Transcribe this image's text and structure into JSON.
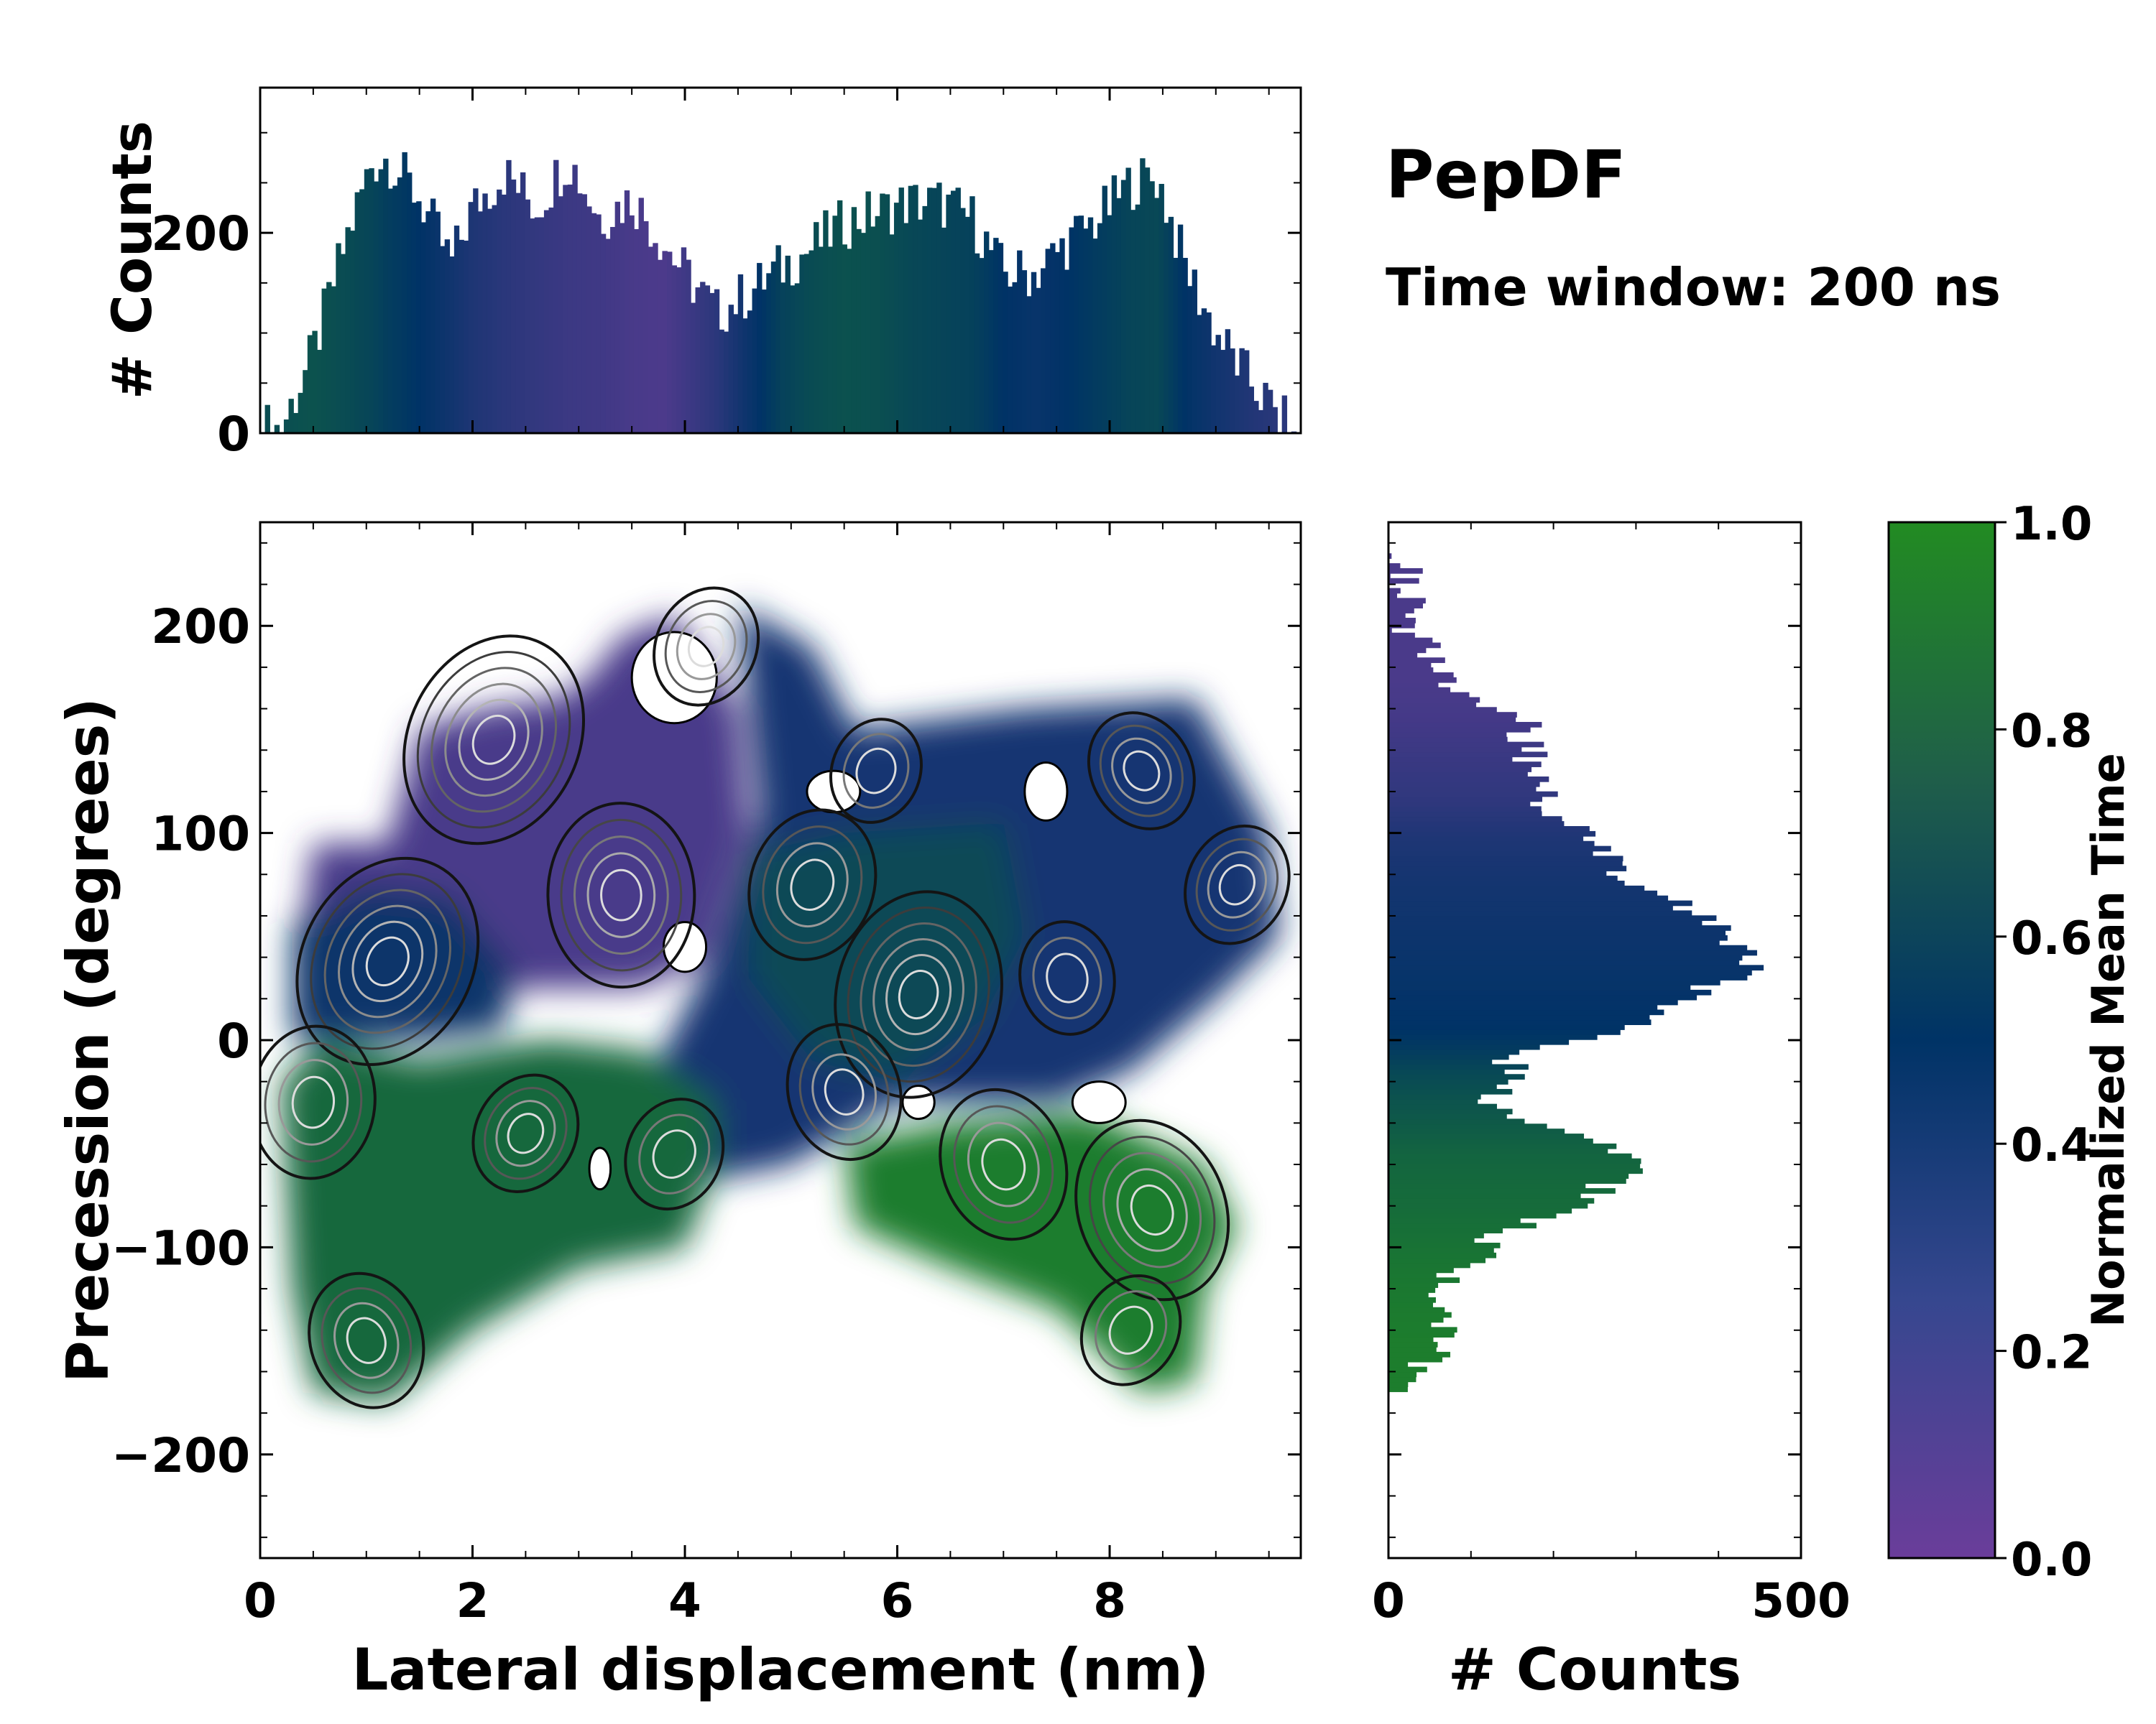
{
  "title": "PepDF",
  "subtitle": "Time window: 200 ns",
  "colors": {
    "purple": "#6a3d9a",
    "navy": "#003366",
    "green": "#228b22"
  },
  "chart_data": [
    {
      "id": "top-histogram",
      "type": "bar",
      "ylabel": "# Counts",
      "xlim": [
        0,
        9.8
      ],
      "ylim": [
        0,
        345
      ],
      "yticks": [
        "0",
        "200"
      ],
      "ytick_values": [
        0,
        200
      ],
      "x_points": [
        0.2,
        0.5,
        0.8,
        1.05,
        1.2,
        1.5,
        1.8,
        2.0,
        2.3,
        2.6,
        2.9,
        3.2,
        3.5,
        3.8,
        4.0,
        4.3,
        4.6,
        4.9,
        5.2,
        5.5,
        5.8,
        6.1,
        6.4,
        6.7,
        7.0,
        7.3,
        7.6,
        7.9,
        8.2,
        8.45,
        8.7,
        9.0,
        9.3,
        9.6,
        9.75
      ],
      "y_points": [
        5,
        80,
        190,
        270,
        275,
        235,
        170,
        225,
        260,
        225,
        275,
        215,
        235,
        190,
        160,
        120,
        140,
        165,
        185,
        210,
        220,
        230,
        230,
        215,
        160,
        160,
        190,
        215,
        250,
        255,
        170,
        100,
        55,
        15,
        0
      ],
      "time_points": [
        0.65,
        0.68,
        0.64,
        0.6,
        0.56,
        0.5,
        0.42,
        0.36,
        0.3,
        0.26,
        0.22,
        0.2,
        0.16,
        0.14,
        0.2,
        0.3,
        0.45,
        0.58,
        0.64,
        0.67,
        0.66,
        0.62,
        0.6,
        0.58,
        0.5,
        0.46,
        0.5,
        0.55,
        0.6,
        0.62,
        0.5,
        0.42,
        0.35,
        0.3,
        0.3
      ]
    },
    {
      "id": "joint-map",
      "type": "heatmap",
      "xlabel": "Lateral displacement (nm)",
      "ylabel": "Precession (degrees)",
      "xlim": [
        0,
        9.8
      ],
      "ylim": [
        -250,
        250
      ],
      "xticks": [
        "0",
        "2",
        "4",
        "6",
        "8"
      ],
      "xtick_values": [
        0,
        2,
        4,
        6,
        8
      ],
      "yticks": [
        "−200",
        "−100",
        "0",
        "100",
        "200"
      ],
      "ytick_values": [
        -200,
        -100,
        0,
        100,
        200
      ],
      "regions": [
        {
          "name": "purple-upper-left",
          "time": 0.15,
          "points": [
            [
              0.3,
              20
            ],
            [
              0.5,
              95
            ],
            [
              1.2,
              95
            ],
            [
              1.5,
              150
            ],
            [
              2.1,
              160
            ],
            [
              2.8,
              165
            ],
            [
              3.1,
              175
            ],
            [
              3.4,
              195
            ],
            [
              3.9,
              205
            ],
            [
              4.5,
              160
            ],
            [
              4.6,
              100
            ],
            [
              4.4,
              70
            ],
            [
              4.2,
              40
            ],
            [
              3.6,
              25
            ],
            [
              2.5,
              25
            ],
            [
              1.5,
              20
            ]
          ]
        },
        {
          "name": "navy-left",
          "time": 0.45,
          "points": [
            [
              0.3,
              0
            ],
            [
              0.3,
              55
            ],
            [
              1.0,
              75
            ],
            [
              1.8,
              70
            ],
            [
              2.4,
              35
            ],
            [
              2.3,
              5
            ],
            [
              1.5,
              0
            ]
          ]
        },
        {
          "name": "navy-right",
          "time": 0.38,
          "points": [
            [
              4.5,
              210
            ],
            [
              5.2,
              190
            ],
            [
              5.6,
              150
            ],
            [
              7.2,
              160
            ],
            [
              8.8,
              165
            ],
            [
              9.5,
              100
            ],
            [
              9.6,
              50
            ],
            [
              9.0,
              20
            ],
            [
              8.2,
              -15
            ],
            [
              7.5,
              -30
            ],
            [
              6.0,
              -30
            ],
            [
              5.0,
              -60
            ],
            [
              4.0,
              -70
            ],
            [
              3.5,
              -35
            ],
            [
              4.2,
              35
            ],
            [
              4.7,
              110
            ]
          ]
        },
        {
          "name": "teal-middle",
          "time": 0.62,
          "points": [
            [
              4.6,
              90
            ],
            [
              5.5,
              100
            ],
            [
              7.0,
              105
            ],
            [
              7.2,
              50
            ],
            [
              6.8,
              10
            ],
            [
              6.0,
              -20
            ],
            [
              5.2,
              -10
            ],
            [
              4.6,
              30
            ]
          ]
        },
        {
          "name": "green-lower-left",
          "time": 0.8,
          "points": [
            [
              0.2,
              -20
            ],
            [
              0.6,
              0
            ],
            [
              1.5,
              -10
            ],
            [
              2.7,
              0
            ],
            [
              3.6,
              -5
            ],
            [
              4.3,
              -30
            ],
            [
              4.3,
              -60
            ],
            [
              4.0,
              -100
            ],
            [
              3.0,
              -110
            ],
            [
              2.0,
              -140
            ],
            [
              1.2,
              -175
            ],
            [
              0.5,
              -170
            ],
            [
              0.3,
              -120
            ]
          ]
        },
        {
          "name": "green-lower-right",
          "time": 0.92,
          "points": [
            [
              5.5,
              -50
            ],
            [
              6.5,
              -40
            ],
            [
              7.8,
              -35
            ],
            [
              8.9,
              -60
            ],
            [
              9.2,
              -90
            ],
            [
              8.9,
              -120
            ],
            [
              8.8,
              -165
            ],
            [
              8.3,
              -170
            ],
            [
              7.5,
              -130
            ],
            [
              6.5,
              -110
            ],
            [
              5.6,
              -90
            ]
          ]
        }
      ],
      "density_peaks": [
        {
          "x": 2.2,
          "y": 145,
          "strength": 1.0
        },
        {
          "x": 1.2,
          "y": 38,
          "strength": 1.0
        },
        {
          "x": 6.2,
          "y": 22,
          "strength": 0.95
        },
        {
          "x": 3.4,
          "y": 70,
          "strength": 0.8
        },
        {
          "x": 8.4,
          "y": -82,
          "strength": 0.8
        },
        {
          "x": 5.2,
          "y": 75,
          "strength": 0.6
        },
        {
          "x": 7.0,
          "y": -60,
          "strength": 0.6
        },
        {
          "x": 0.5,
          "y": -30,
          "strength": 0.6
        },
        {
          "x": 1.0,
          "y": -145,
          "strength": 0.5
        },
        {
          "x": 5.5,
          "y": -25,
          "strength": 0.5
        },
        {
          "x": 4.2,
          "y": 190,
          "strength": 0.4
        },
        {
          "x": 9.2,
          "y": 75,
          "strength": 0.4
        },
        {
          "x": 8.3,
          "y": 130,
          "strength": 0.4
        },
        {
          "x": 2.5,
          "y": -45,
          "strength": 0.4
        },
        {
          "x": 3.9,
          "y": -55,
          "strength": 0.35
        },
        {
          "x": 8.2,
          "y": -140,
          "strength": 0.35
        },
        {
          "x": 7.6,
          "y": 30,
          "strength": 0.35
        },
        {
          "x": 5.8,
          "y": 130,
          "strength": 0.3
        }
      ],
      "holes": [
        {
          "x": 3.9,
          "y": 175,
          "rx": 0.4,
          "ry": 22
        },
        {
          "x": 4.0,
          "y": 45,
          "rx": 0.2,
          "ry": 12
        },
        {
          "x": 7.4,
          "y": 120,
          "rx": 0.2,
          "ry": 14
        },
        {
          "x": 5.4,
          "y": 120,
          "rx": 0.25,
          "ry": 10
        },
        {
          "x": 6.2,
          "y": -30,
          "rx": 0.15,
          "ry": 8
        },
        {
          "x": 7.9,
          "y": -30,
          "rx": 0.25,
          "ry": 10
        },
        {
          "x": 3.2,
          "y": -62,
          "rx": 0.1,
          "ry": 10
        }
      ]
    },
    {
      "id": "right-histogram",
      "type": "bar",
      "orientation": "horizontal",
      "xlabel": "# Counts",
      "xlim": [
        0,
        500
      ],
      "ylim": [
        -250,
        250
      ],
      "xticks": [
        "0",
        "500"
      ],
      "xtick_values": [
        0,
        500
      ],
      "y_points": [
        -172,
        -160,
        -145,
        -125,
        -110,
        -95,
        -80,
        -65,
        -55,
        -40,
        -28,
        -15,
        -5,
        5,
        20,
        35,
        50,
        65,
        80,
        100,
        115,
        140,
        155,
        175,
        195,
        215,
        235
      ],
      "x_points": [
        0,
        40,
        70,
        50,
        90,
        130,
        230,
        280,
        300,
        170,
        120,
        150,
        150,
        280,
        360,
        440,
        410,
        350,
        280,
        230,
        190,
        170,
        160,
        70,
        30,
        20,
        15
      ],
      "time_points": [
        0.92,
        0.92,
        0.92,
        0.9,
        0.88,
        0.85,
        0.82,
        0.8,
        0.78,
        0.72,
        0.68,
        0.62,
        0.55,
        0.5,
        0.48,
        0.46,
        0.44,
        0.42,
        0.4,
        0.35,
        0.28,
        0.22,
        0.18,
        0.15,
        0.15,
        0.15,
        0.15
      ]
    }
  ],
  "colorbar": {
    "label": "Normalized Mean Time",
    "ticks": [
      "0.0",
      "0.2",
      "0.4",
      "0.6",
      "0.8",
      "1.0"
    ],
    "tick_values": [
      0,
      0.2,
      0.4,
      0.6,
      0.8,
      1.0
    ]
  }
}
